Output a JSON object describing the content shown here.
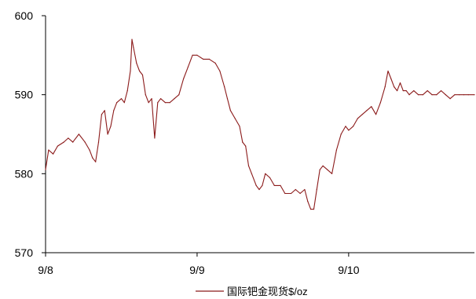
{
  "chart_data": {
    "type": "line",
    "title": "",
    "xlabel": "",
    "ylabel": "",
    "ylim": [
      570,
      600
    ],
    "xlim": [
      0,
      2.83
    ],
    "y_ticks": [
      570,
      580,
      590,
      600
    ],
    "x_ticks": [
      {
        "value": 0,
        "label": "9/8"
      },
      {
        "value": 1,
        "label": "9/9"
      },
      {
        "value": 2,
        "label": "9/10"
      }
    ],
    "grid": false,
    "legend_position": "bottom-center",
    "series": [
      {
        "name": "国际钯金现货$/oz",
        "color": "#8B1A1A",
        "x_unit": "days since 9/8",
        "points": [
          [
            0.0,
            580.5
          ],
          [
            0.02,
            583.0
          ],
          [
            0.05,
            582.5
          ],
          [
            0.08,
            583.5
          ],
          [
            0.12,
            584.0
          ],
          [
            0.15,
            584.5
          ],
          [
            0.18,
            584.0
          ],
          [
            0.22,
            585.0
          ],
          [
            0.26,
            584.0
          ],
          [
            0.29,
            583.0
          ],
          [
            0.31,
            582.0
          ],
          [
            0.33,
            581.5
          ],
          [
            0.35,
            584.0
          ],
          [
            0.37,
            587.5
          ],
          [
            0.39,
            588.0
          ],
          [
            0.41,
            585.0
          ],
          [
            0.43,
            586.0
          ],
          [
            0.45,
            588.0
          ],
          [
            0.47,
            589.0
          ],
          [
            0.5,
            589.5
          ],
          [
            0.52,
            589.0
          ],
          [
            0.54,
            590.5
          ],
          [
            0.56,
            593.0
          ],
          [
            0.57,
            597.0
          ],
          [
            0.58,
            596.0
          ],
          [
            0.6,
            594.0
          ],
          [
            0.62,
            593.0
          ],
          [
            0.64,
            592.5
          ],
          [
            0.66,
            590.0
          ],
          [
            0.68,
            589.0
          ],
          [
            0.7,
            589.5
          ],
          [
            0.72,
            584.5
          ],
          [
            0.74,
            589.0
          ],
          [
            0.76,
            589.5
          ],
          [
            0.79,
            589.0
          ],
          [
            0.82,
            589.0
          ],
          [
            0.85,
            589.5
          ],
          [
            0.88,
            590.0
          ],
          [
            0.91,
            592.0
          ],
          [
            0.94,
            593.5
          ],
          [
            0.97,
            595.0
          ],
          [
            1.0,
            595.0
          ],
          [
            1.04,
            594.5
          ],
          [
            1.08,
            594.5
          ],
          [
            1.12,
            594.0
          ],
          [
            1.15,
            593.0
          ],
          [
            1.18,
            591.0
          ],
          [
            1.2,
            589.5
          ],
          [
            1.22,
            588.0
          ],
          [
            1.25,
            587.0
          ],
          [
            1.28,
            586.0
          ],
          [
            1.3,
            584.0
          ],
          [
            1.32,
            583.5
          ],
          [
            1.34,
            581.0
          ],
          [
            1.36,
            580.0
          ],
          [
            1.39,
            578.5
          ],
          [
            1.41,
            578.0
          ],
          [
            1.43,
            578.5
          ],
          [
            1.45,
            580.0
          ],
          [
            1.48,
            579.5
          ],
          [
            1.51,
            578.5
          ],
          [
            1.55,
            578.5
          ],
          [
            1.58,
            577.5
          ],
          [
            1.62,
            577.5
          ],
          [
            1.65,
            578.0
          ],
          [
            1.68,
            577.5
          ],
          [
            1.71,
            578.0
          ],
          [
            1.73,
            576.5
          ],
          [
            1.75,
            575.5
          ],
          [
            1.77,
            575.5
          ],
          [
            1.79,
            578.0
          ],
          [
            1.81,
            580.5
          ],
          [
            1.83,
            581.0
          ],
          [
            1.86,
            580.5
          ],
          [
            1.89,
            580.0
          ],
          [
            1.92,
            583.0
          ],
          [
            1.95,
            585.0
          ],
          [
            1.98,
            586.0
          ],
          [
            2.0,
            585.5
          ],
          [
            2.03,
            586.0
          ],
          [
            2.06,
            587.0
          ],
          [
            2.09,
            587.5
          ],
          [
            2.12,
            588.0
          ],
          [
            2.15,
            588.5
          ],
          [
            2.18,
            587.5
          ],
          [
            2.21,
            589.0
          ],
          [
            2.24,
            591.0
          ],
          [
            2.26,
            593.0
          ],
          [
            2.28,
            592.0
          ],
          [
            2.3,
            591.0
          ],
          [
            2.32,
            590.5
          ],
          [
            2.34,
            591.5
          ],
          [
            2.36,
            590.5
          ],
          [
            2.38,
            590.5
          ],
          [
            2.4,
            590.0
          ],
          [
            2.43,
            590.5
          ],
          [
            2.46,
            590.0
          ],
          [
            2.49,
            590.0
          ],
          [
            2.52,
            590.5
          ],
          [
            2.55,
            590.0
          ],
          [
            2.58,
            590.0
          ],
          [
            2.61,
            590.5
          ],
          [
            2.64,
            590.0
          ],
          [
            2.67,
            589.5
          ],
          [
            2.7,
            590.0
          ],
          [
            2.73,
            590.0
          ],
          [
            2.76,
            590.0
          ],
          [
            2.79,
            590.0
          ],
          [
            2.83,
            590.0
          ]
        ]
      }
    ]
  }
}
